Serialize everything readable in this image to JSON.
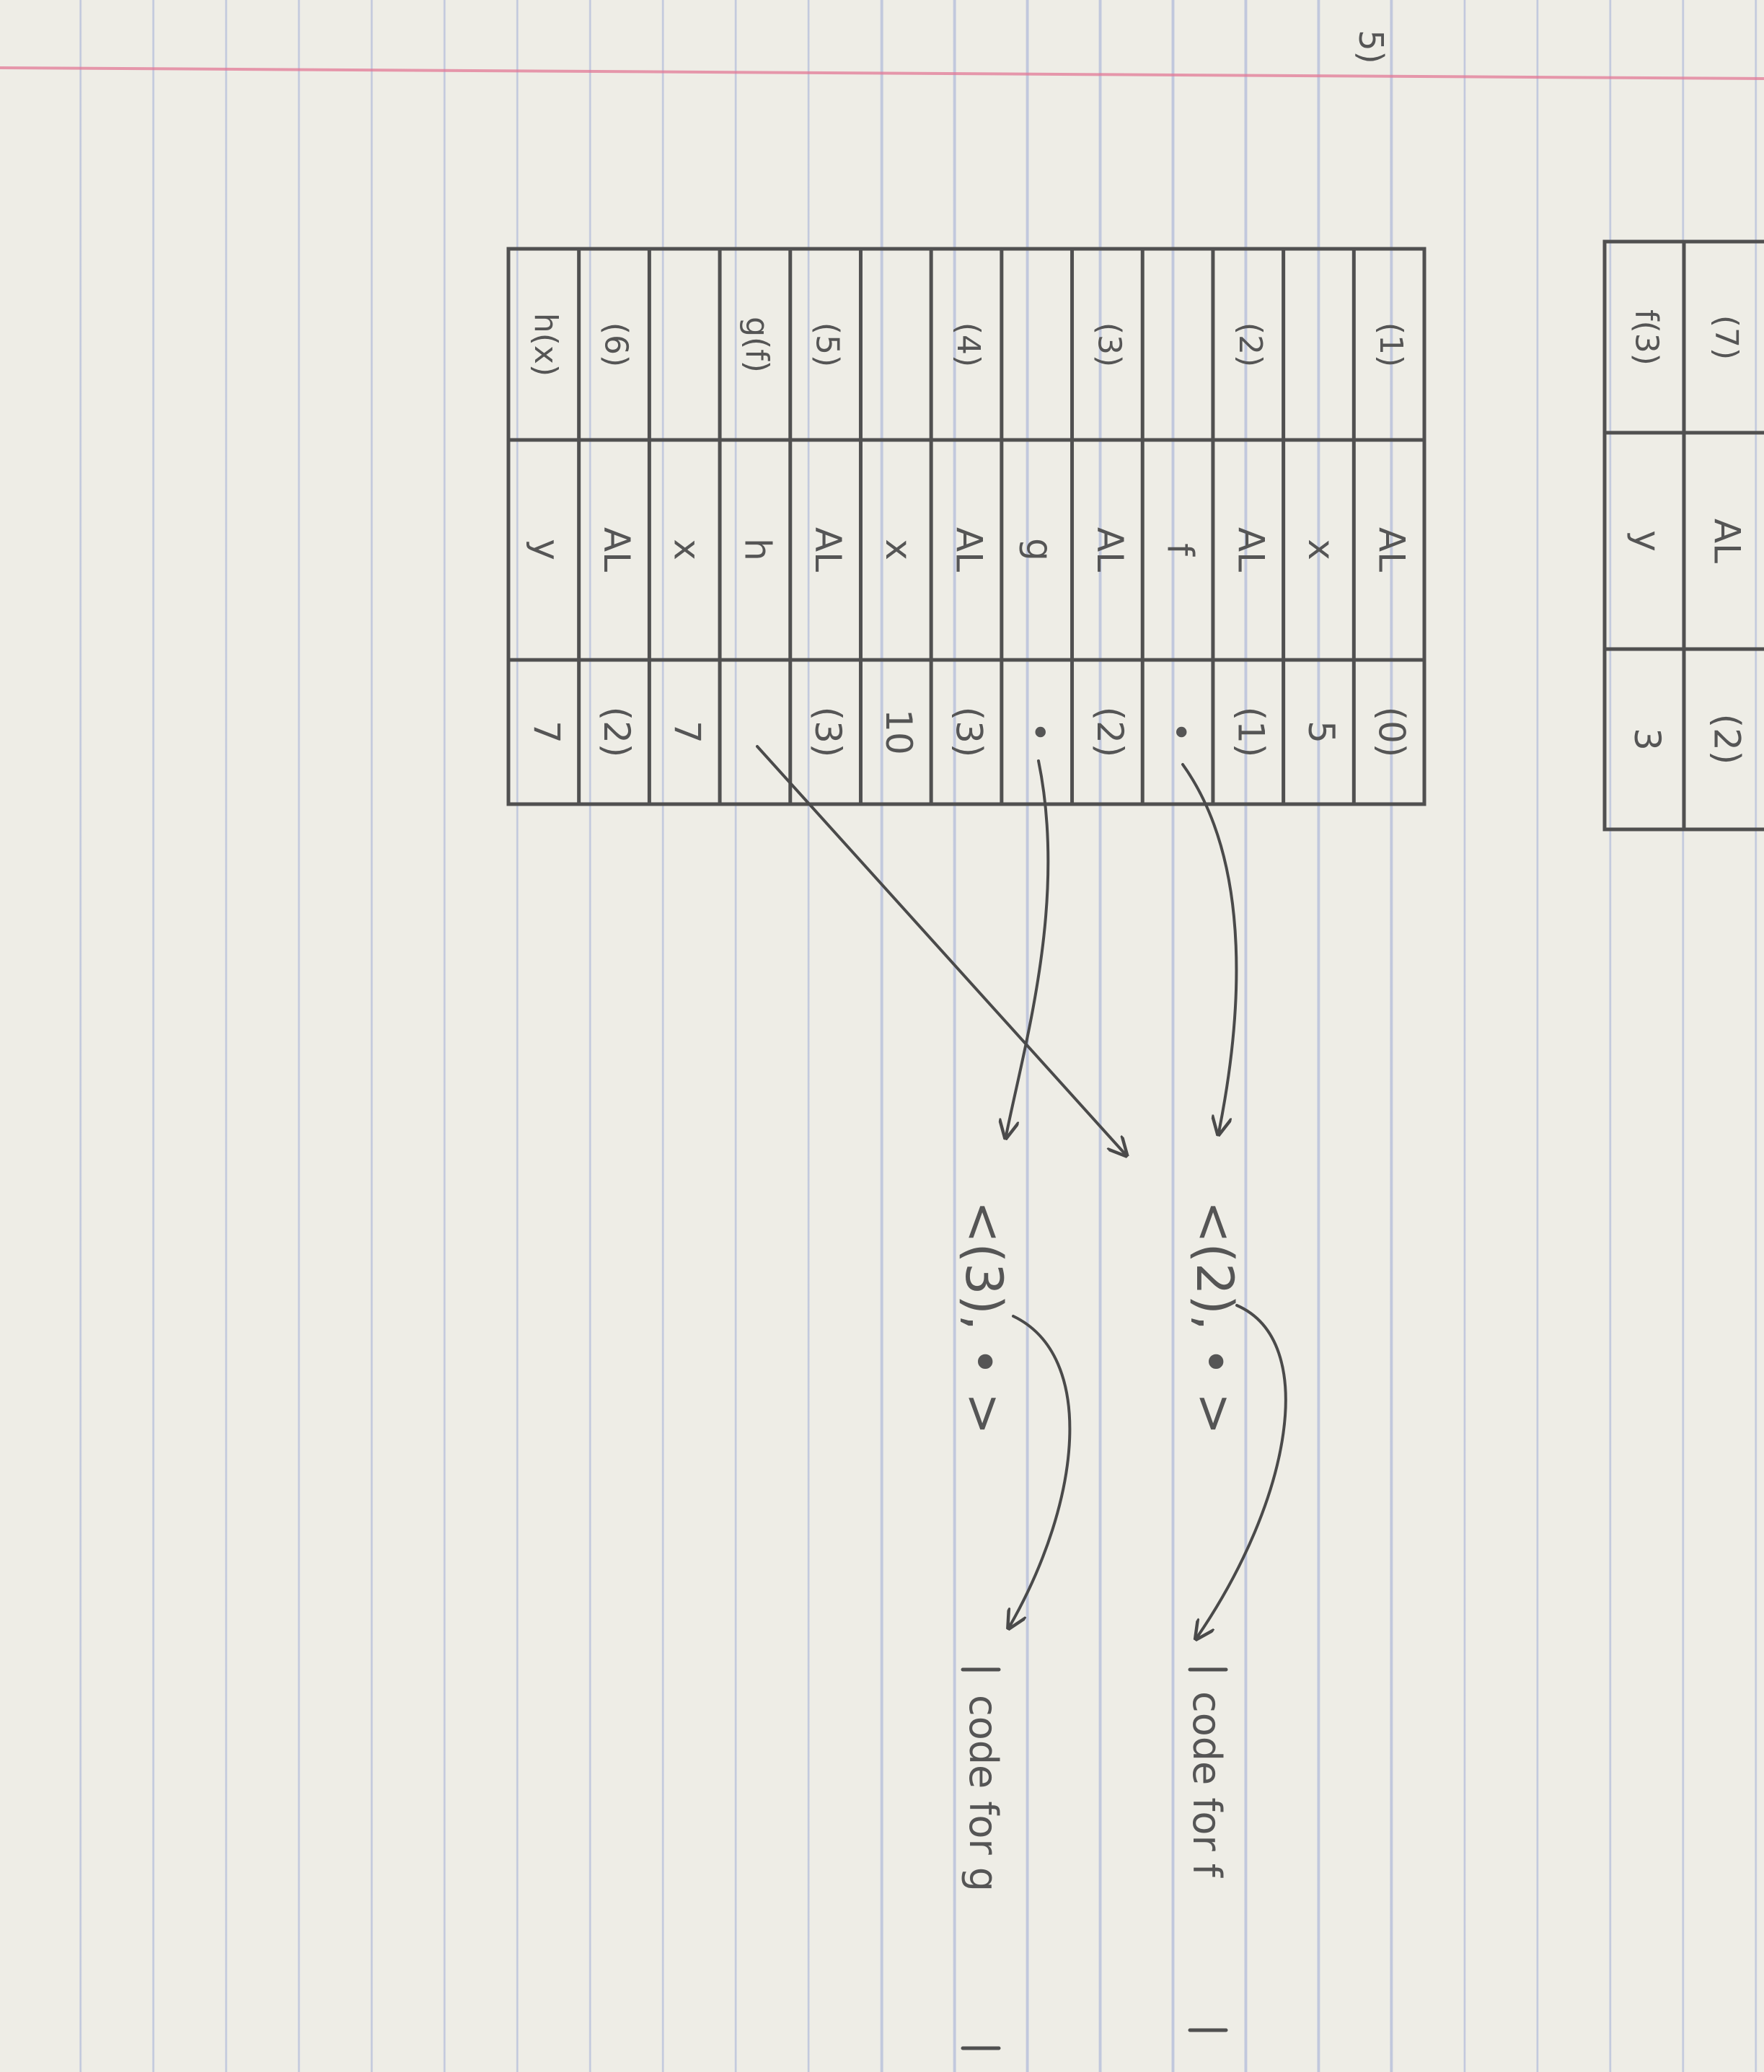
{
  "question_number": "5)",
  "main_table": {
    "rows": [
      {
        "label": "(1)",
        "name": "AL",
        "value": "(0)"
      },
      {
        "label": "",
        "name": "x",
        "value": "5"
      },
      {
        "label": "(2)",
        "name": "AL",
        "value": "(1)"
      },
      {
        "label": "",
        "name": "f",
        "value": "•"
      },
      {
        "label": "(3)",
        "name": "AL",
        "value": "(2)"
      },
      {
        "label": "",
        "name": "g",
        "value": "•"
      },
      {
        "label": "(4)",
        "name": "AL",
        "value": "(3)"
      },
      {
        "label": "",
        "name": "x",
        "value": "10"
      },
      {
        "label": "(5)",
        "name": "AL",
        "value": "(3)"
      },
      {
        "label": "g(f)",
        "name": "h",
        "value": ""
      },
      {
        "label": "",
        "name": "x",
        "value": "7"
      },
      {
        "label": "(6)",
        "name": "AL",
        "value": "(2)"
      },
      {
        "label": "h(x)",
        "name": "y",
        "value": "7"
      }
    ]
  },
  "partial_table": {
    "rows": [
      {
        "label": "(7)",
        "name": "AL",
        "value": "(2)"
      },
      {
        "label": "f(3)",
        "name": "y",
        "value": "3"
      }
    ]
  },
  "closures": [
    {
      "text": "<(2), • >"
    },
    {
      "text": "<(3), • >"
    }
  ],
  "code_boxes": [
    {
      "text": "code for f"
    },
    {
      "text": "code for g"
    }
  ],
  "colors": {
    "pencil": "#505050",
    "paper": "#eeede6",
    "rule_line": "#788ccd",
    "margin_line": "#e17896"
  }
}
